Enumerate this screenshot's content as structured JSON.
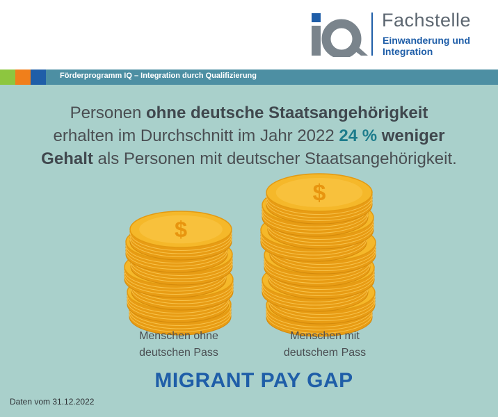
{
  "header": {
    "logo_text": "IQ",
    "org_name": "Fachstelle",
    "org_sub_line1": "Einwanderung und",
    "org_sub_line2": "Integration"
  },
  "band": {
    "text": "Förderprogramm IQ – Integration durch Qualifizierung",
    "colors": [
      "#8dc63f",
      "#f07f1b",
      "#1f5ea8"
    ]
  },
  "headline": {
    "part1": "Personen ",
    "bold1": "ohne deutsche Staatsangehörigkeit",
    "part2": "erhalten im Durchschnitt im Jahr 2022 ",
    "percent": "24 %",
    "bold2": " weniger",
    "bold3": "Gehalt",
    "part3": " als Personen mit deutscher Staatsangehörigkeit."
  },
  "labels": {
    "left_line1": "Menschen ohne",
    "left_line2": "deutschen Pass",
    "right_line1": "Menschen mit",
    "right_line2": "deutschem Pass"
  },
  "title": "MIGRANT PAY GAP",
  "footer": "Daten vom 31.12.2022",
  "colors": {
    "background": "#a9d0cb",
    "accent_blue": "#1f5ea8",
    "accent_teal": "#1d7c8c",
    "coin_gold": "#f5b82a"
  },
  "icons": [
    "dollar-coin-stack-small",
    "dollar-coin-stack-large"
  ],
  "coin_glyph": "$"
}
